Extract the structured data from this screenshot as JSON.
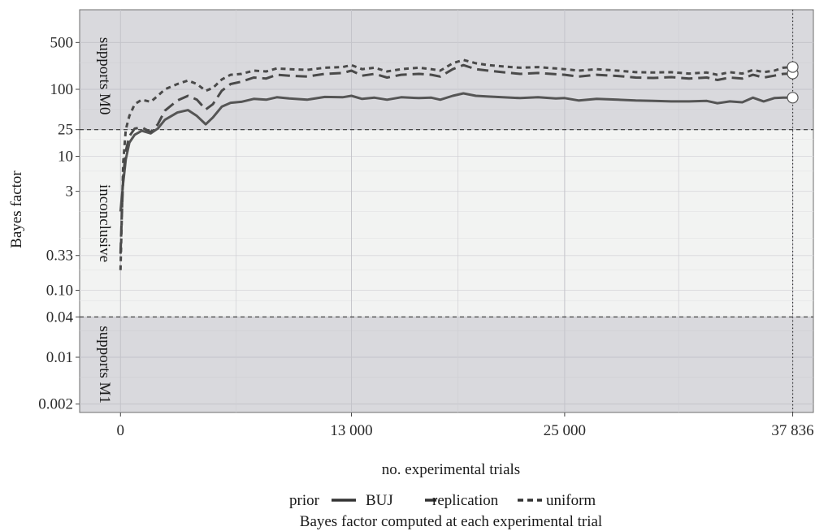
{
  "chart_data": {
    "type": "line",
    "caption": "Bayes factor computed at each experimental trial",
    "xlabel": "no. experimental trials",
    "ylabel": "Bayes factor",
    "xlim": [
      -2300,
      39000
    ],
    "x_ticks": [
      {
        "value": 0,
        "label": "0"
      },
      {
        "value": 13000,
        "label": "13 000"
      },
      {
        "value": 25000,
        "label": "25 000"
      },
      {
        "value": 37836,
        "label": "37 836"
      }
    ],
    "y_ticks": [
      {
        "value": 500,
        "label": "500"
      },
      {
        "value": 100,
        "label": "100"
      },
      {
        "value": 25,
        "label": "25"
      },
      {
        "value": 10,
        "label": "10"
      },
      {
        "value": 3,
        "label": "3"
      },
      {
        "value": 0.33,
        "label": "0.33"
      },
      {
        "value": 0.1,
        "label": "0.10"
      },
      {
        "value": 0.04,
        "label": "0.04"
      },
      {
        "value": 0.01,
        "label": "0.01"
      },
      {
        "value": 0.002,
        "label": "0.002"
      }
    ],
    "thresholds": [
      25,
      0.04
    ],
    "final_trial": 37836,
    "regions": [
      {
        "label": "supports M0",
        "from": 25,
        "to": 1000
      },
      {
        "label": "inconclusive",
        "from": 0.04,
        "to": 25
      },
      {
        "label": "supports M1",
        "from": 0.0005,
        "to": 0.04
      }
    ],
    "legend": {
      "title": "prior",
      "position": "bottom"
    },
    "series": [
      {
        "name": "BUJ",
        "dash": "solid",
        "x": [
          0,
          150,
          300,
          500,
          800,
          1200,
          1700,
          2100,
          2500,
          3200,
          3800,
          4300,
          4800,
          5200,
          5700,
          6200,
          6800,
          7500,
          8200,
          8800,
          9500,
          10500,
          11500,
          12500,
          13000,
          13600,
          14300,
          15000,
          15800,
          16800,
          17500,
          18000,
          18700,
          19300,
          20000,
          20700,
          21500,
          22500,
          23500,
          24500,
          25000,
          25800,
          26800,
          28000,
          29000,
          30000,
          31000,
          32000,
          33000,
          33600,
          34300,
          35000,
          35600,
          36200,
          36800,
          37300,
          37836
        ],
        "values": [
          1.5,
          4,
          9,
          16,
          21,
          24,
          22,
          26,
          35,
          45,
          49,
          40,
          30,
          38,
          55,
          63,
          65,
          72,
          70,
          76,
          73,
          70,
          77,
          76,
          80,
          72,
          75,
          70,
          76,
          74,
          75,
          70,
          80,
          87,
          80,
          78,
          76,
          74,
          76,
          73,
          74,
          68,
          72,
          70,
          68,
          67,
          66,
          66,
          67,
          62,
          66,
          64,
          75,
          66,
          74,
          75,
          75
        ]
      },
      {
        "name": "replication",
        "dash": "long",
        "x": [
          0,
          150,
          300,
          500,
          800,
          1200,
          1700,
          2100,
          2500,
          3200,
          3800,
          4300,
          4800,
          5200,
          5700,
          6200,
          6800,
          7500,
          8200,
          8800,
          9500,
          10500,
          11500,
          12500,
          13000,
          13600,
          14300,
          15000,
          15800,
          16800,
          17500,
          18000,
          18700,
          19300,
          20000,
          20700,
          21500,
          22500,
          23500,
          24500,
          25000,
          25800,
          26800,
          28000,
          29000,
          30000,
          31000,
          32000,
          33000,
          33600,
          34300,
          35000,
          35600,
          36200,
          36800,
          37300,
          37836
        ],
        "values": [
          0.35,
          5,
          12,
          20,
          26,
          27,
          23,
          30,
          48,
          68,
          80,
          70,
          50,
          60,
          95,
          120,
          130,
          150,
          145,
          165,
          160,
          155,
          170,
          175,
          190,
          160,
          170,
          150,
          165,
          170,
          165,
          155,
          200,
          230,
          200,
          190,
          180,
          170,
          175,
          168,
          165,
          155,
          165,
          158,
          150,
          148,
          152,
          145,
          150,
          138,
          150,
          145,
          165,
          150,
          160,
          170,
          172
        ]
      },
      {
        "name": "uniform",
        "dash": "short",
        "x": [
          0,
          150,
          300,
          500,
          800,
          1200,
          1700,
          2100,
          2500,
          3200,
          3800,
          4300,
          4800,
          5200,
          5700,
          6200,
          6800,
          7500,
          8200,
          8800,
          9500,
          10500,
          11500,
          12500,
          13000,
          13600,
          14300,
          15000,
          15800,
          16800,
          17500,
          18000,
          18700,
          19300,
          20000,
          20700,
          21500,
          22500,
          23500,
          24500,
          25000,
          25800,
          26800,
          28000,
          29000,
          30000,
          31000,
          32000,
          33000,
          33600,
          34300,
          35000,
          35600,
          36200,
          36800,
          37300,
          37836
        ],
        "values": [
          0.2,
          8,
          25,
          40,
          60,
          70,
          65,
          80,
          100,
          120,
          135,
          120,
          95,
          105,
          140,
          165,
          170,
          190,
          185,
          205,
          200,
          195,
          210,
          215,
          230,
          200,
          210,
          185,
          200,
          210,
          200,
          190,
          245,
          275,
          245,
          230,
          220,
          210,
          215,
          205,
          200,
          190,
          200,
          190,
          180,
          178,
          180,
          172,
          178,
          165,
          180,
          172,
          195,
          180,
          190,
          210,
          215
        ]
      }
    ],
    "endpoints": [
      {
        "series": "BUJ",
        "x": 37836,
        "y": 75
      },
      {
        "series": "replication",
        "x": 37836,
        "y": 172
      },
      {
        "series": "uniform",
        "x": 37836,
        "y": 215
      }
    ]
  }
}
